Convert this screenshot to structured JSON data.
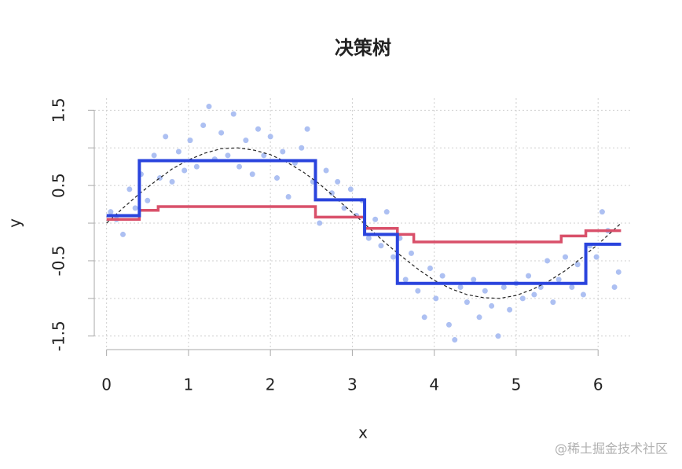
{
  "chart_data": {
    "type": "scatter",
    "title": "决策树",
    "x_label": "x",
    "y_label": "y",
    "watermark": "@稀土掘金技术社区",
    "xlim": [
      -0.15,
      6.42
    ],
    "ylim": [
      -1.68,
      1.66
    ],
    "xticks": [
      0,
      1,
      2,
      3,
      4,
      5,
      6
    ],
    "yticks": [
      -1.5,
      -1,
      -0.5,
      0,
      0.5,
      1,
      1.5
    ],
    "grid": true,
    "points": {
      "color": "#adc0f2",
      "x": [
        0.05,
        0.12,
        0.2,
        0.28,
        0.35,
        0.42,
        0.5,
        0.58,
        0.65,
        0.72,
        0.8,
        0.88,
        0.95,
        1.02,
        1.1,
        1.18,
        1.25,
        1.32,
        1.4,
        1.48,
        1.55,
        1.62,
        1.7,
        1.78,
        1.85,
        1.92,
        2.0,
        2.08,
        2.15,
        2.22,
        2.3,
        2.38,
        2.45,
        2.52,
        2.6,
        2.68,
        2.75,
        2.82,
        2.9,
        2.98,
        3.05,
        3.12,
        3.2,
        3.28,
        3.35,
        3.42,
        3.5,
        3.58,
        3.65,
        3.72,
        3.8,
        3.88,
        3.95,
        4.02,
        4.1,
        4.18,
        4.25,
        4.32,
        4.4,
        4.48,
        4.55,
        4.62,
        4.7,
        4.78,
        4.85,
        4.92,
        5.0,
        5.08,
        5.15,
        5.22,
        5.3,
        5.38,
        5.45,
        5.52,
        5.6,
        5.68,
        5.75,
        5.82,
        5.9,
        5.98,
        6.05,
        6.12,
        6.2,
        6.25
      ],
      "values": [
        0.15,
        0.05,
        -0.15,
        0.45,
        0.2,
        0.65,
        0.3,
        0.9,
        0.6,
        1.15,
        0.55,
        0.95,
        0.7,
        1.1,
        0.75,
        1.3,
        1.55,
        0.85,
        1.2,
        0.9,
        1.45,
        0.75,
        1.1,
        0.65,
        1.25,
        0.9,
        1.15,
        0.6,
        0.95,
        0.35,
        0.8,
        1.0,
        1.25,
        0.55,
        0.0,
        0.7,
        0.4,
        0.55,
        0.2,
        0.45,
        0.1,
        0.3,
        -0.2,
        0.05,
        -0.3,
        0.15,
        -0.45,
        -0.2,
        -0.75,
        -0.4,
        -0.9,
        -1.25,
        -0.6,
        -1.0,
        -0.7,
        -1.35,
        -1.55,
        -0.85,
        -1.05,
        -0.75,
        -1.25,
        -0.9,
        -1.1,
        -1.5,
        -0.85,
        -1.15,
        -0.8,
        -1.0,
        -0.7,
        -0.95,
        -0.85,
        -0.5,
        -1.05,
        -0.75,
        -0.45,
        -0.85,
        -0.55,
        -0.95,
        -0.3,
        -0.45,
        0.15,
        -0.1,
        -0.85,
        -0.65
      ]
    },
    "series": [
      {
        "color": "#222222",
        "style": "dashed",
        "x": [
          0,
          0.2,
          0.4,
          0.6,
          0.8,
          1.0,
          1.2,
          1.4,
          1.6,
          1.8,
          2.0,
          2.2,
          2.4,
          2.6,
          2.8,
          3.0,
          3.2,
          3.4,
          3.6,
          3.8,
          4.0,
          4.2,
          4.4,
          4.6,
          4.8,
          5.0,
          5.2,
          5.4,
          5.6,
          5.8,
          6.0,
          6.2,
          6.28
        ],
        "values": [
          0,
          0.2,
          0.39,
          0.56,
          0.72,
          0.84,
          0.93,
          0.99,
          1.0,
          0.97,
          0.91,
          0.81,
          0.68,
          0.52,
          0.33,
          0.14,
          -0.06,
          -0.26,
          -0.44,
          -0.61,
          -0.76,
          -0.87,
          -0.95,
          -0.99,
          -1.0,
          -0.96,
          -0.88,
          -0.77,
          -0.63,
          -0.46,
          -0.28,
          -0.08,
          0
        ]
      },
      {
        "color": "#d9506a",
        "style": "step",
        "x": [
          0,
          0.4,
          0.63,
          2.55,
          3.15,
          3.55,
          3.75,
          5.55,
          5.85,
          6.28
        ],
        "values": [
          0.05,
          0.17,
          0.22,
          0.08,
          -0.07,
          -0.15,
          -0.25,
          -0.17,
          -0.1,
          -0.1
        ]
      },
      {
        "color": "#2a44dd",
        "style": "step",
        "x": [
          0,
          0.4,
          2.55,
          3.15,
          3.55,
          5.85,
          6.28
        ],
        "values": [
          0.1,
          0.83,
          0.31,
          -0.15,
          -0.8,
          -0.28,
          -0.28
        ]
      }
    ]
  }
}
